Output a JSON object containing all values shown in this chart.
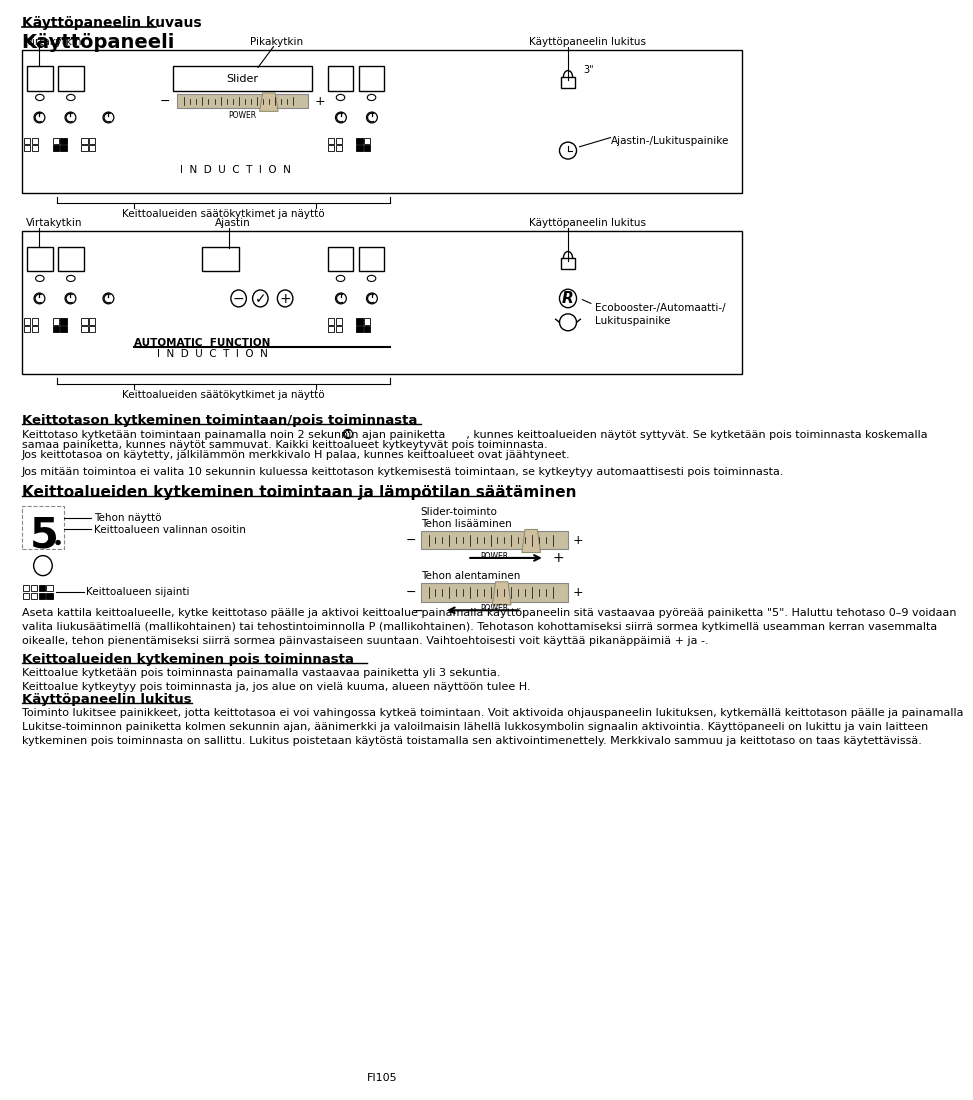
{
  "bg_color": "#ffffff",
  "heading1": "Käyttöpaneelin kuvaus",
  "heading2": "Käyttöpaneeli",
  "panel1_label_left": "Virtakytkin",
  "panel1_label_center": "Pikakytkin",
  "panel1_label_right": "Käyttöpaneelin lukitus",
  "panel1_slider_label": "Slider",
  "panel1_power": "POWER",
  "panel1_induction": "I  N  D  U  C  T  I  O  N",
  "panel1_bottom": "Keittoalueiden säätökytkimet ja näyttö",
  "panel1_right2": "Ajastin-/Lukituspainike",
  "panel2_label_left": "Virtakytkin",
  "panel2_label_center": "Ajastin",
  "panel2_label_right": "Käyttöpaneelin lukitus",
  "panel2_auto": "AUTOMATIC  FUNCTION",
  "panel2_induction": "I  N  D  U  C  T  I  O  N",
  "panel2_bottom": "Keittoalueiden säätökytkimet ja näyttö",
  "panel2_eco": "Ecobooster-/Automaatti-/\nLukituspainike",
  "s3_heading": "Keittotason kytkeminen toimintaan/pois toiminnasta",
  "s3_text1a": "Keittotaso kytketään toimintaan painamalla noin 2 sekunnin ajan painiketta      , kunnes keittoalueiden näytöt syttyvät. Se kytketään pois toiminnasta koskemalla",
  "s3_text1b": "samaa painiketta, kunnes näytöt sammuvat. Kaikki keittoalueet kytkeytyvät pois toiminnasta.",
  "s3_text1c": "Jos keittotasoa on käytetty, jälkilämmön merkkivalo H palaa, kunnes keittoalueet ovat jäähtyneet.",
  "s3_text2": "Jos mitään toimintoa ei valita 10 sekunnin kuluessa keittotason kytkemisestä toimintaan, se kytkeytyy automaattisesti pois toiminnasta.",
  "s4_heading": "Keittoalueiden kytkeminen toimintaan ja lämpötilan säätäminen",
  "slider_toiminto": "Slider-toiminto",
  "tehon_lisaaminen": "Tehon lisääminen",
  "tehon_alentaminen": "Tehon alentaminen",
  "tehon_nayto": "Tehon näyttö",
  "keittolueen_valinta": "Keittoalueen valinnan osoitin",
  "keittoalueen_sijainti": "Keittoalueen sijainti",
  "s4_text": "Aseta kattila keittoalueelle, kytke keittotaso päälle ja aktivoi keittoalue painamalla käyttöpaneelin sitä vastaavaa pyöreää painiketta \"5\". Haluttu tehotaso 0–9 voidaan\nvalita liukusäätimellä (mallikohtainen) tai tehostintoiminnolla P (mallikohtainen). Tehotason kohottamiseksi siirrä sormea kytkimellä useamman kerran vasemmalta\noikealle, tehon pienentämiseksi siirrä sormea päinvastaiseen suuntaan. Vaihtoehtoisesti voit käyttää pikanäppäimiä + ja -.",
  "s5_heading": "Keittoalueiden kytkeminen pois toiminnasta",
  "s5_text": "Keittoalue kytketään pois toiminnasta painamalla vastaavaa painiketta yli 3 sekuntia.\nKeittoalue kytkeytyy pois toiminnasta ja, jos alue on vielä kuuma, alueen näyttöön tulee H.",
  "s6_heading": "Käyttöpaneelin lukitus",
  "s6_text": "Toiminto lukitsee painikkeet, jotta keittotasoa ei voi vahingossa kytkeä toimintaan. Voit aktivoida ohjauspaneelin lukituksen, kytkemällä keittotason päälle ja painamalla\nLukitse-toiminnon painiketta kolmen sekunnin ajan, äänimerkki ja valoilmaisin lähellä lukkosymbolin signaalin aktivointia. Käyttöpaneeli on lukittu ja vain laitteen\nkytkeminen pois toiminnasta on sallittu. Lukitus poistetaan käytöstä toistamalla sen aktivointimenettely. Merkkivalo sammuu ja keittotaso on taas käytettävissä.",
  "footer": "FI105"
}
